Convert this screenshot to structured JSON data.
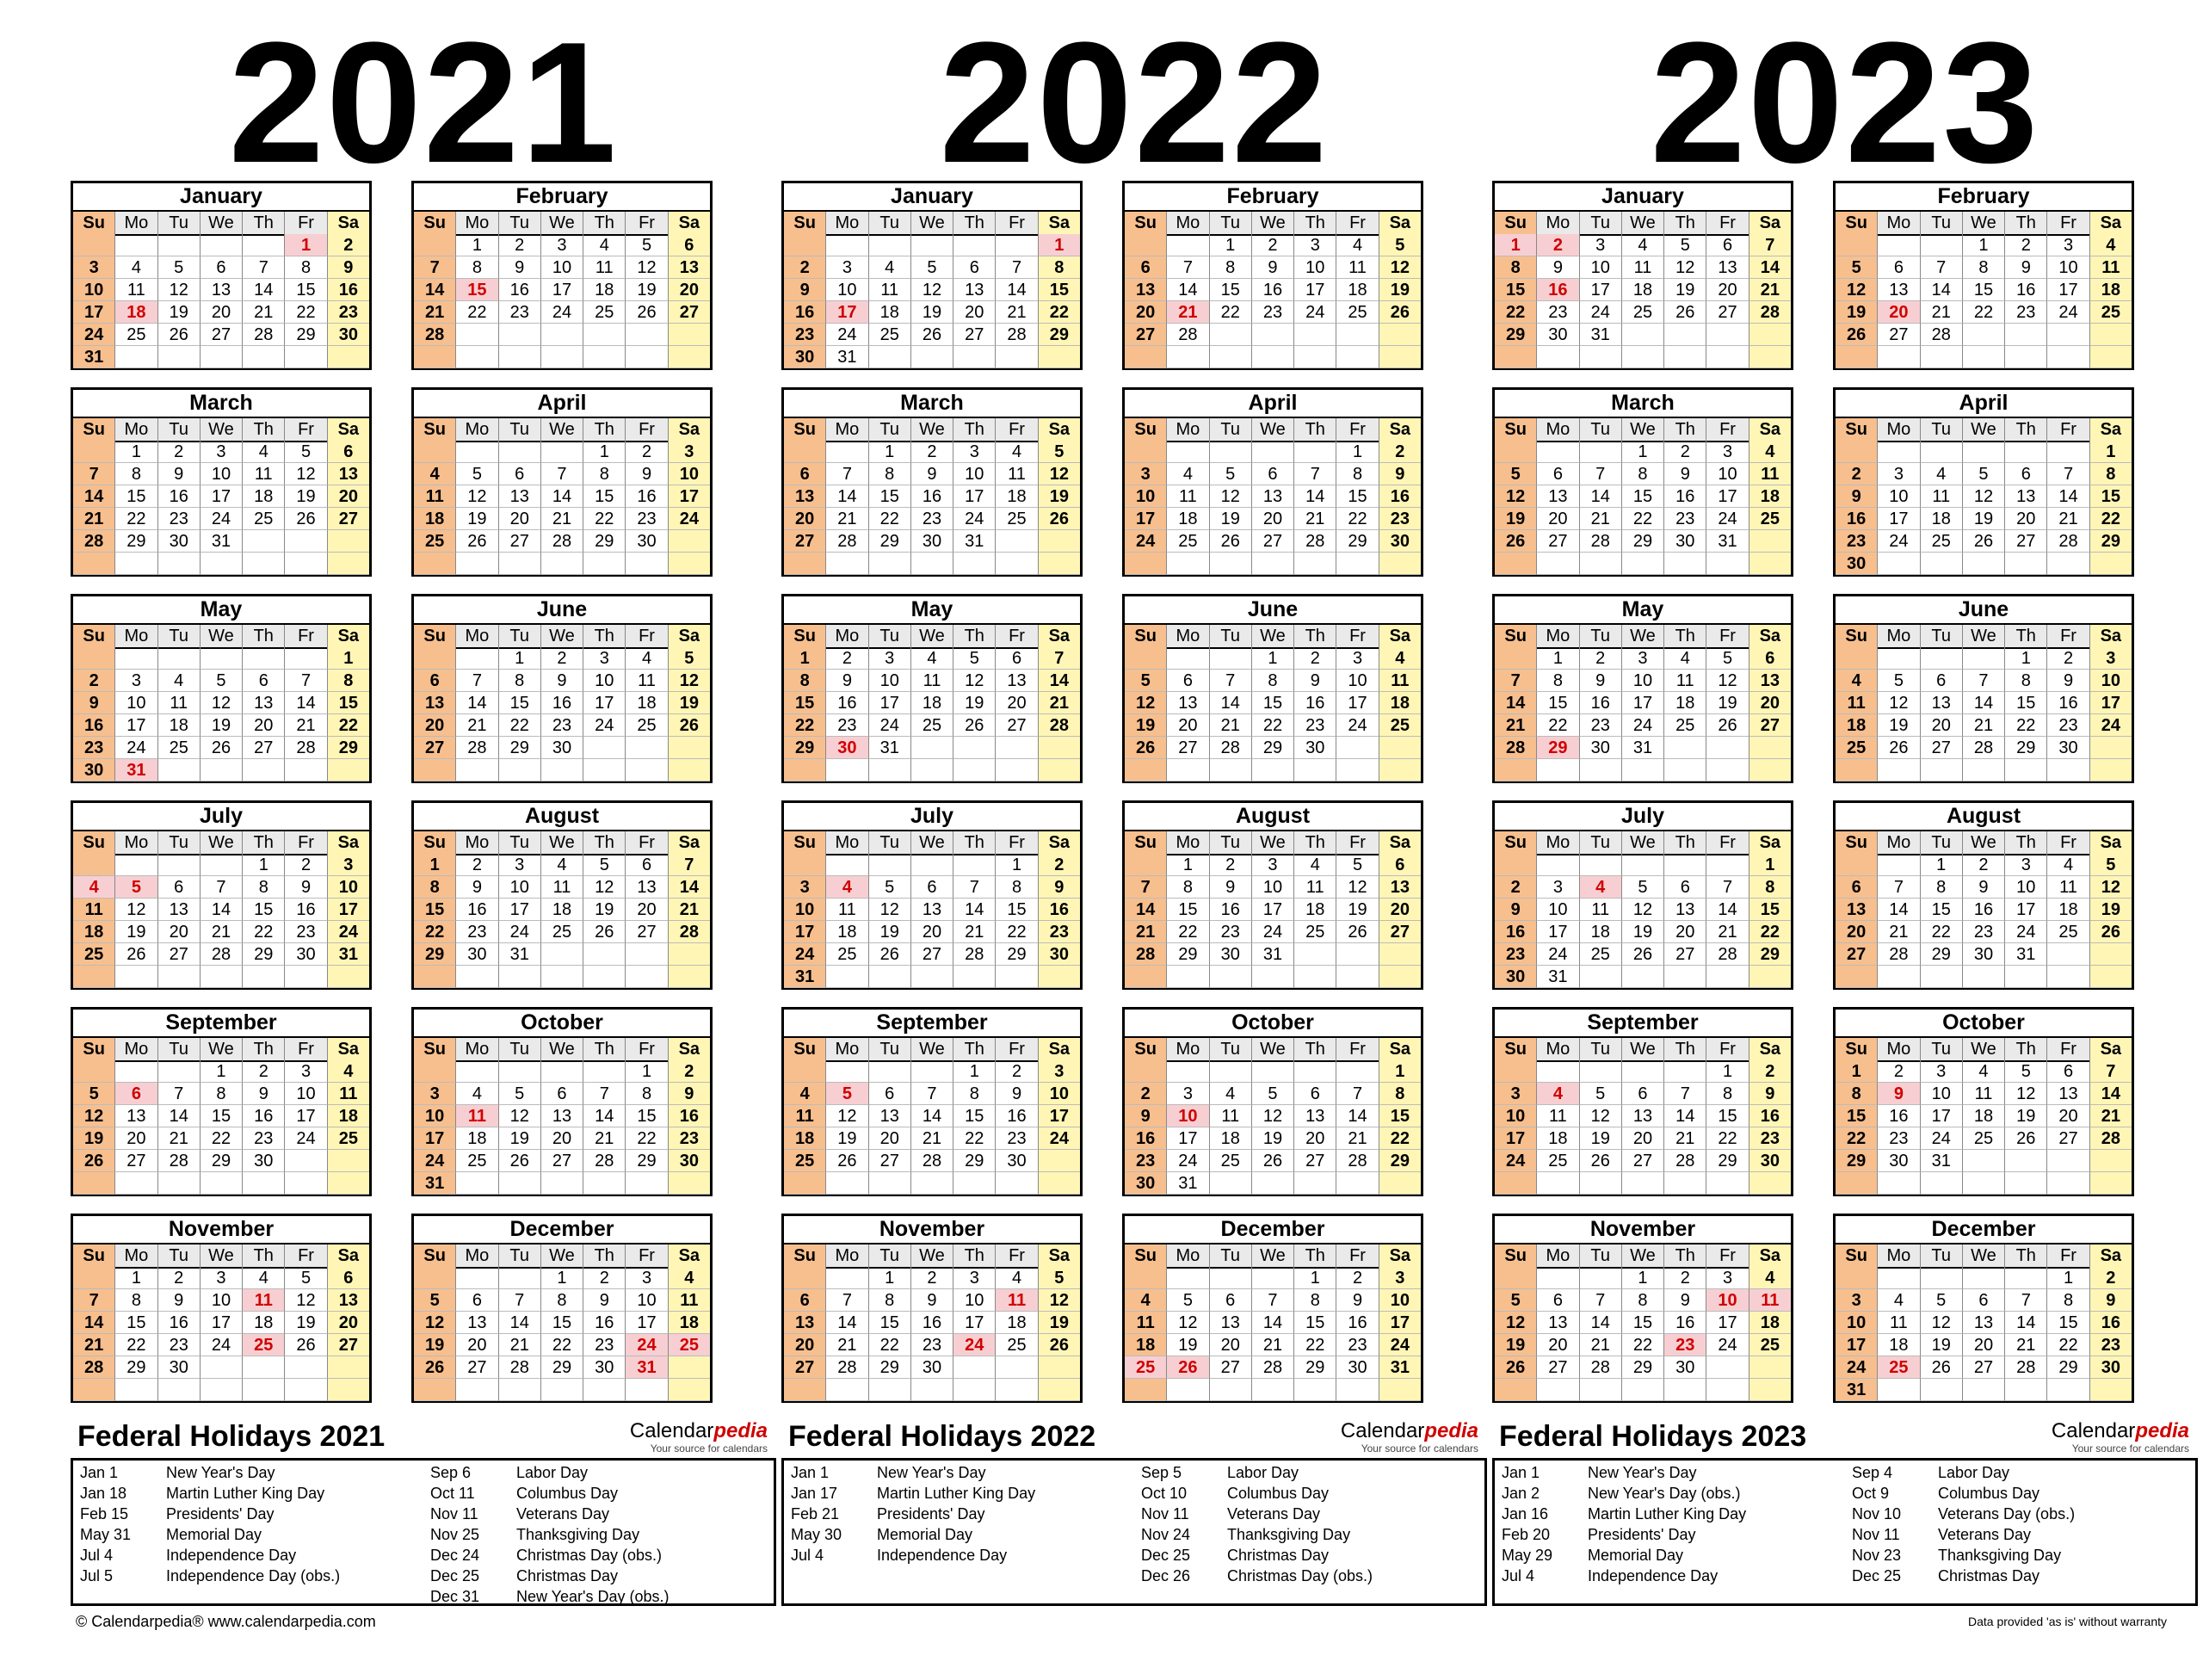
{
  "years": [
    {
      "year": "2021",
      "months": [
        {
          "name": "January",
          "start": 5,
          "days": 31,
          "holidays": [
            1,
            18
          ]
        },
        {
          "name": "February",
          "start": 1,
          "days": 28,
          "holidays": [
            15
          ]
        },
        {
          "name": "March",
          "start": 1,
          "days": 31,
          "holidays": []
        },
        {
          "name": "April",
          "start": 4,
          "days": 30,
          "holidays": []
        },
        {
          "name": "May",
          "start": 6,
          "days": 31,
          "holidays": [
            31
          ]
        },
        {
          "name": "June",
          "start": 2,
          "days": 30,
          "holidays": []
        },
        {
          "name": "July",
          "start": 4,
          "days": 31,
          "holidays": [
            4,
            5
          ]
        },
        {
          "name": "August",
          "start": 0,
          "days": 31,
          "holidays": []
        },
        {
          "name": "September",
          "start": 3,
          "days": 30,
          "holidays": [
            6
          ]
        },
        {
          "name": "October",
          "start": 5,
          "days": 31,
          "holidays": [
            11
          ]
        },
        {
          "name": "November",
          "start": 1,
          "days": 30,
          "holidays": [
            11,
            25
          ]
        },
        {
          "name": "December",
          "start": 3,
          "days": 31,
          "holidays": [
            24,
            25,
            31
          ]
        }
      ]
    },
    {
      "year": "2022",
      "months": [
        {
          "name": "January",
          "start": 6,
          "days": 31,
          "holidays": [
            1,
            17
          ]
        },
        {
          "name": "February",
          "start": 2,
          "days": 28,
          "holidays": [
            21
          ]
        },
        {
          "name": "March",
          "start": 2,
          "days": 31,
          "holidays": []
        },
        {
          "name": "April",
          "start": 5,
          "days": 30,
          "holidays": []
        },
        {
          "name": "May",
          "start": 0,
          "days": 31,
          "holidays": [
            30
          ]
        },
        {
          "name": "June",
          "start": 3,
          "days": 30,
          "holidays": []
        },
        {
          "name": "July",
          "start": 5,
          "days": 31,
          "holidays": [
            4
          ]
        },
        {
          "name": "August",
          "start": 1,
          "days": 31,
          "holidays": []
        },
        {
          "name": "September",
          "start": 4,
          "days": 30,
          "holidays": [
            5
          ]
        },
        {
          "name": "October",
          "start": 6,
          "days": 31,
          "holidays": [
            10
          ]
        },
        {
          "name": "November",
          "start": 2,
          "days": 30,
          "holidays": [
            11,
            24
          ]
        },
        {
          "name": "December",
          "start": 4,
          "days": 31,
          "holidays": [
            25,
            26
          ]
        }
      ]
    },
    {
      "year": "2023",
      "months": [
        {
          "name": "January",
          "start": 0,
          "days": 31,
          "holidays": [
            1,
            2,
            16
          ]
        },
        {
          "name": "February",
          "start": 3,
          "days": 28,
          "holidays": [
            20
          ]
        },
        {
          "name": "March",
          "start": 3,
          "days": 31,
          "holidays": []
        },
        {
          "name": "April",
          "start": 6,
          "days": 30,
          "holidays": []
        },
        {
          "name": "May",
          "start": 1,
          "days": 31,
          "holidays": [
            29
          ]
        },
        {
          "name": "June",
          "start": 4,
          "days": 30,
          "holidays": []
        },
        {
          "name": "July",
          "start": 6,
          "days": 31,
          "holidays": [
            4
          ]
        },
        {
          "name": "August",
          "start": 2,
          "days": 31,
          "holidays": []
        },
        {
          "name": "September",
          "start": 5,
          "days": 30,
          "holidays": [
            4
          ]
        },
        {
          "name": "October",
          "start": 0,
          "days": 31,
          "holidays": [
            9
          ]
        },
        {
          "name": "November",
          "start": 3,
          "days": 30,
          "holidays": [
            10,
            11,
            23
          ]
        },
        {
          "name": "December",
          "start": 5,
          "days": 31,
          "holidays": [
            25
          ]
        }
      ]
    }
  ],
  "day_headers": [
    "Su",
    "Mo",
    "Tu",
    "We",
    "Th",
    "Fr",
    "Sa"
  ],
  "holiday_tables": [
    {
      "title": "Federal Holidays 2021",
      "left": [
        [
          "Jan 1",
          "New Year's Day"
        ],
        [
          "Jan 18",
          "Martin Luther King Day"
        ],
        [
          "Feb 15",
          "Presidents' Day"
        ],
        [
          "May 31",
          "Memorial Day"
        ],
        [
          "Jul 4",
          "Independence Day"
        ],
        [
          "Jul 5",
          "Independence Day (obs.)"
        ]
      ],
      "right": [
        [
          "Sep 6",
          "Labor Day"
        ],
        [
          "Oct 11",
          "Columbus Day"
        ],
        [
          "Nov 11",
          "Veterans Day"
        ],
        [
          "Nov 25",
          "Thanksgiving Day"
        ],
        [
          "Dec 24",
          "Christmas Day (obs.)"
        ],
        [
          "Dec 25",
          "Christmas Day"
        ],
        [
          "Dec 31",
          "New Year's Day (obs.)"
        ]
      ]
    },
    {
      "title": "Federal Holidays 2022",
      "left": [
        [
          "Jan 1",
          "New Year's Day"
        ],
        [
          "Jan 17",
          "Martin Luther King Day"
        ],
        [
          "Feb 21",
          "Presidents' Day"
        ],
        [
          "May 30",
          "Memorial Day"
        ],
        [
          "Jul 4",
          "Independence Day"
        ]
      ],
      "right": [
        [
          "Sep 5",
          "Labor Day"
        ],
        [
          "Oct 10",
          "Columbus Day"
        ],
        [
          "Nov 11",
          "Veterans Day"
        ],
        [
          "Nov 24",
          "Thanksgiving Day"
        ],
        [
          "Dec 25",
          "Christmas Day"
        ],
        [
          "Dec 26",
          "Christmas Day (obs.)"
        ]
      ]
    },
    {
      "title": "Federal Holidays 2023",
      "left": [
        [
          "Jan 1",
          "New Year's Day"
        ],
        [
          "Jan 2",
          "New Year's Day (obs.)"
        ],
        [
          "Jan 16",
          "Martin Luther King Day"
        ],
        [
          "Feb 20",
          "Presidents' Day"
        ],
        [
          "May 29",
          "Memorial Day"
        ],
        [
          "Jul 4",
          "Independence Day"
        ]
      ],
      "right": [
        [
          "Sep 4",
          "Labor Day"
        ],
        [
          "Oct 9",
          "Columbus Day"
        ],
        [
          "Nov 10",
          "Veterans Day (obs.)"
        ],
        [
          "Nov 11",
          "Veterans Day"
        ],
        [
          "Nov 23",
          "Thanksgiving Day"
        ],
        [
          "Dec 25",
          "Christmas Day"
        ]
      ]
    }
  ],
  "brand": {
    "name_main": "Calendar",
    "name_accent": "pedia",
    "tagline": "Your source for calendars"
  },
  "footer": {
    "left": "© Calendarpedia®   www.calendarpedia.com",
    "right": "Data provided 'as is' without warranty"
  },
  "colors": {
    "sunday": "#f7bf8e",
    "saturday": "#fff6b6",
    "holiday_bg": "#f7cfd2",
    "holiday_text": "#d00000"
  }
}
